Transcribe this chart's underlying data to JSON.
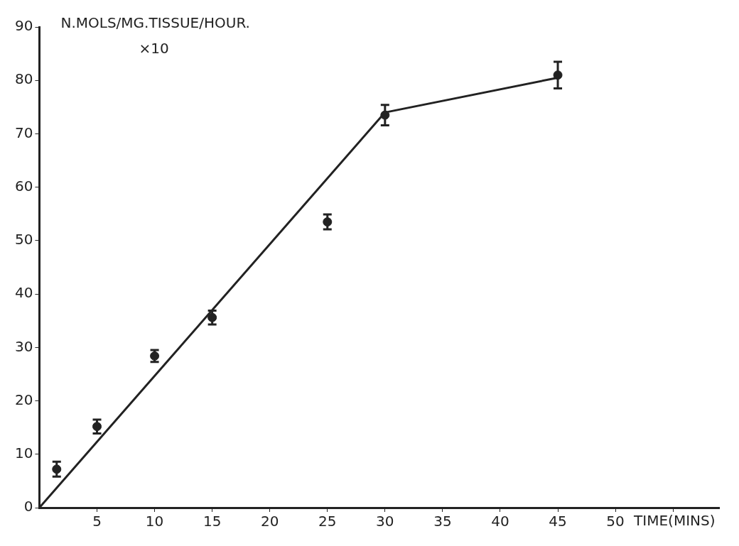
{
  "chart_data": {
    "type": "scatter",
    "xlabel": "TIME(MINS)",
    "ylabel": "N.MOLS/MG.TISSUE/HOUR.",
    "annotations": [
      "×10"
    ],
    "xlim": [
      0,
      59
    ],
    "ylim": [
      0,
      90
    ],
    "xticks": [
      5,
      10,
      15,
      20,
      25,
      30,
      35,
      40,
      45,
      50,
      {
        "value": 55,
        "label": null
      }
    ],
    "yticks": [
      0,
      10,
      20,
      30,
      40,
      50,
      60,
      70,
      80,
      90
    ],
    "grid": false,
    "legend": false,
    "series": [
      {
        "type": "scatter",
        "color": "#222222",
        "marker": "circle",
        "x": [
          1.5,
          5,
          10,
          15,
          25,
          30,
          45
        ],
        "values": [
          7.2,
          15.2,
          28.4,
          35.6,
          53.5,
          73.5,
          81
        ],
        "errors": [
          1.4,
          1.3,
          1.1,
          1.3,
          1.4,
          1.9,
          2.5
        ]
      },
      {
        "type": "line",
        "color": "#222222",
        "marker": "none",
        "line_style": "solid",
        "x": [
          0,
          30,
          45
        ],
        "values": [
          0,
          74,
          80.5
        ]
      }
    ]
  }
}
